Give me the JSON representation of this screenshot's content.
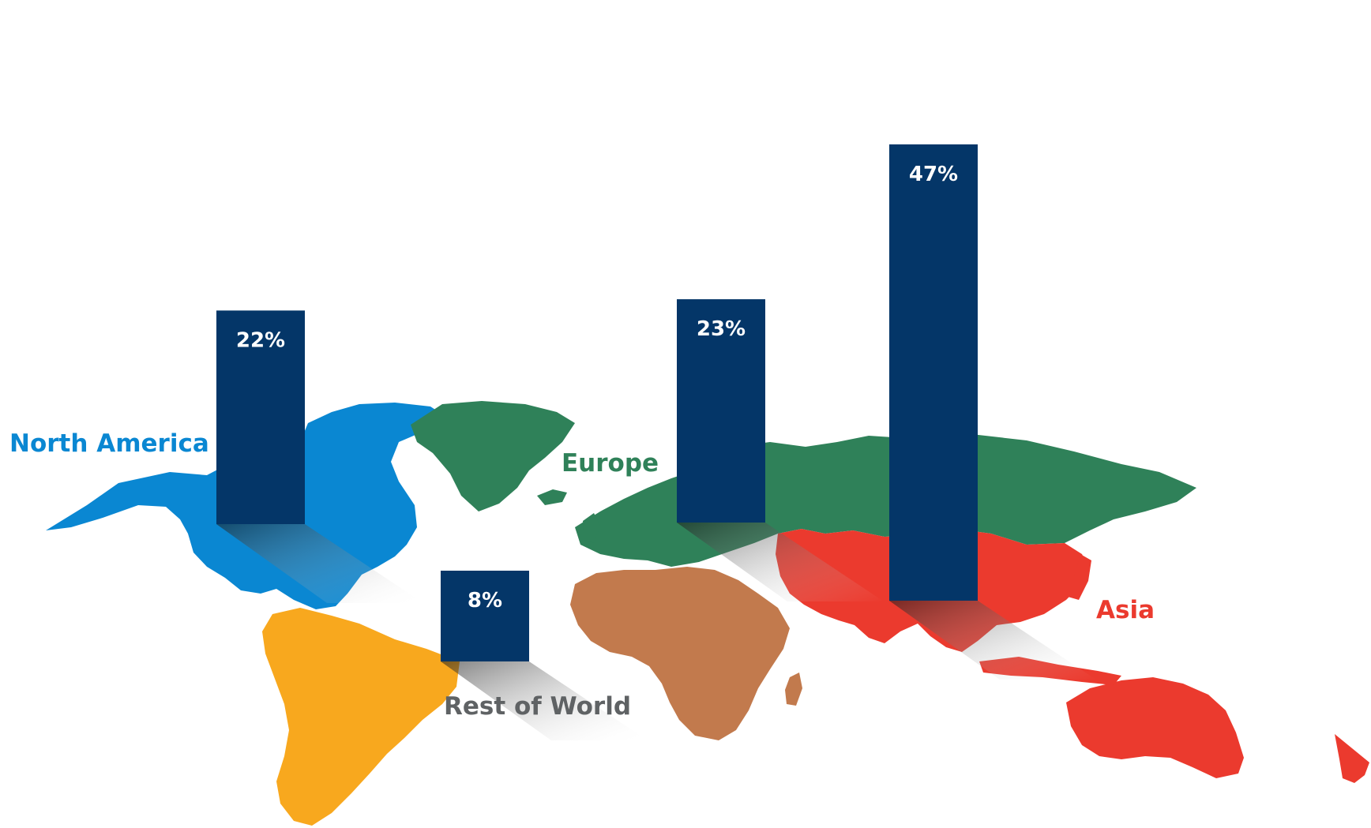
{
  "chart_data": {
    "type": "bar",
    "title": "",
    "xlabel": "",
    "ylabel": "",
    "categories": [
      "North America",
      "Rest of World",
      "Europe",
      "Asia"
    ],
    "values": [
      22,
      8,
      23,
      47
    ],
    "value_labels": [
      "22%",
      "8%",
      "23%",
      "47%"
    ],
    "unit": "%",
    "ylim": [
      0,
      50
    ],
    "grid": false,
    "legend": "none",
    "bar_color": "#043668",
    "region_colors": {
      "North America": "#0a87d2",
      "Rest of World": "#5f6264",
      "Europe": "#2f8159",
      "Asia": "#eb3a2e",
      "South America": "#f8a81e",
      "Africa": "#c27a4d"
    },
    "background": "world-map"
  }
}
